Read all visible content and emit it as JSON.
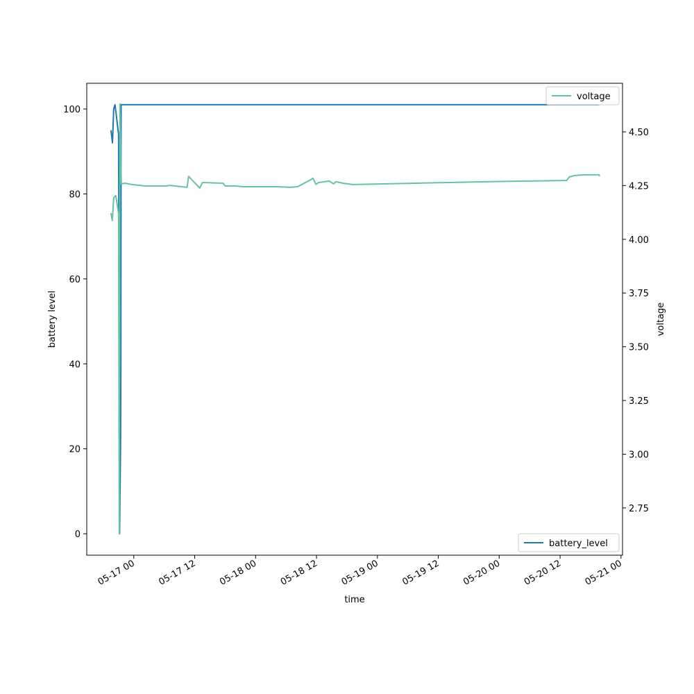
{
  "chart_data": {
    "type": "line",
    "xlabel": "time",
    "ylabel": "battery level",
    "y2label": "voltage",
    "xlim": [
      -9.27,
      96.3
    ],
    "xticks": [
      {
        "value": 0,
        "label": "05-17 00"
      },
      {
        "value": 12,
        "label": "05-17 12"
      },
      {
        "value": 24,
        "label": "05-18 00"
      },
      {
        "value": 36,
        "label": "05-18 12"
      },
      {
        "value": 48,
        "label": "05-19 00"
      },
      {
        "value": 60,
        "label": "05-19 12"
      },
      {
        "value": 72,
        "label": "05-20 00"
      },
      {
        "value": 84,
        "label": "05-20 12"
      },
      {
        "value": 96,
        "label": "05-21 00"
      }
    ],
    "ylim": [
      -5.05,
      106.05
    ],
    "yticks": [
      0,
      20,
      40,
      60,
      80,
      100
    ],
    "y2lim": [
      2.53,
      4.726
    ],
    "y2ticks": [
      2.75,
      {
        "value": 3,
        "label": "3.00"
      },
      3.25,
      {
        "value": 3.5,
        "label": "3.50"
      },
      3.75,
      {
        "value": 4,
        "label": "4.00"
      },
      4.25,
      {
        "value": 4.5,
        "label": "4.50"
      }
    ],
    "series": [
      {
        "name": "battery_level",
        "color": "#1f77b4",
        "axis": "y",
        "legend": "lower right",
        "x": [
          -4.5,
          -4.2,
          -3.96,
          -3.7,
          -3.0,
          -2.8,
          -2.6,
          -2.55,
          -2.5,
          91.7
        ],
        "values": [
          95,
          92,
          100,
          101,
          94,
          0,
          22,
          41,
          101,
          101
        ]
      },
      {
        "name": "voltage",
        "color": "#66c2a5",
        "axis": "y2",
        "legend": "upper right",
        "x": [
          -4.5,
          -4.23,
          -3.96,
          -3.55,
          -3.0,
          -2.86,
          -2.73,
          -2.46,
          -1.77,
          -0.41,
          2.32,
          6.4,
          7.1,
          10.5,
          10.8,
          13.0,
          13.5,
          17.6,
          18.0,
          20.0,
          21.4,
          28.2,
          30.9,
          32.3,
          34.6,
          35.3,
          35.9,
          36.4,
          38.5,
          39.4,
          39.8,
          41.2,
          43.2,
          55.5,
          69.2,
          85.3,
          85.8,
          86.9,
          88.9,
          91.7,
          91.75
        ],
        "values": [
          4.122,
          4.087,
          4.193,
          4.203,
          4.119,
          2.63,
          4.63,
          4.258,
          4.261,
          4.255,
          4.248,
          4.248,
          4.251,
          4.242,
          4.293,
          4.238,
          4.264,
          4.261,
          4.248,
          4.248,
          4.245,
          4.245,
          4.242,
          4.245,
          4.274,
          4.284,
          4.255,
          4.264,
          4.271,
          4.258,
          4.268,
          4.261,
          4.255,
          4.261,
          4.268,
          4.274,
          4.29,
          4.297,
          4.3,
          4.3,
          4.293
        ]
      }
    ]
  }
}
